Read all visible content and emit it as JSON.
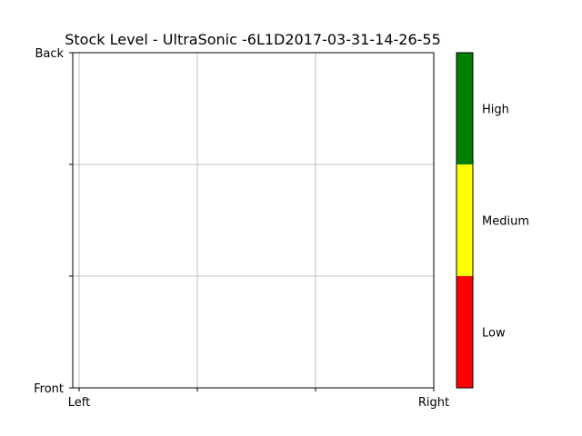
{
  "chart_data": {
    "type": "heatmap",
    "title": "Stock Level - UltraSonic -6L1D2017-03-31-14-26-55",
    "x_ticks": [
      "Left",
      "",
      "",
      "Right"
    ],
    "y_ticks": [
      "Front",
      "",
      "",
      "Back"
    ],
    "grid": true,
    "values": [],
    "colorbar": {
      "levels": [
        {
          "label": "Low",
          "color": "#ff0000"
        },
        {
          "label": "Medium",
          "color": "#ffff00"
        },
        {
          "label": "High",
          "color": "#008000"
        }
      ]
    }
  }
}
